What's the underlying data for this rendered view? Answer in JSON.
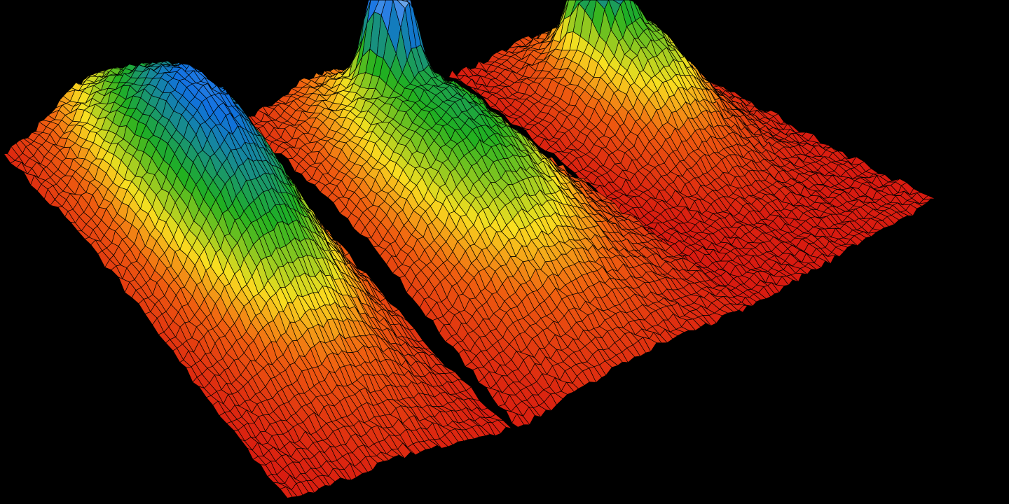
{
  "visualization": {
    "kind": "3d-surface-mesh",
    "panel_count": 3,
    "background_color": "#000000",
    "mesh_line_color": "#000000",
    "colormap": [
      "#d81a10",
      "#f06010",
      "#f8e020",
      "#20b020",
      "#1070e0",
      "#ffffff"
    ]
  }
}
